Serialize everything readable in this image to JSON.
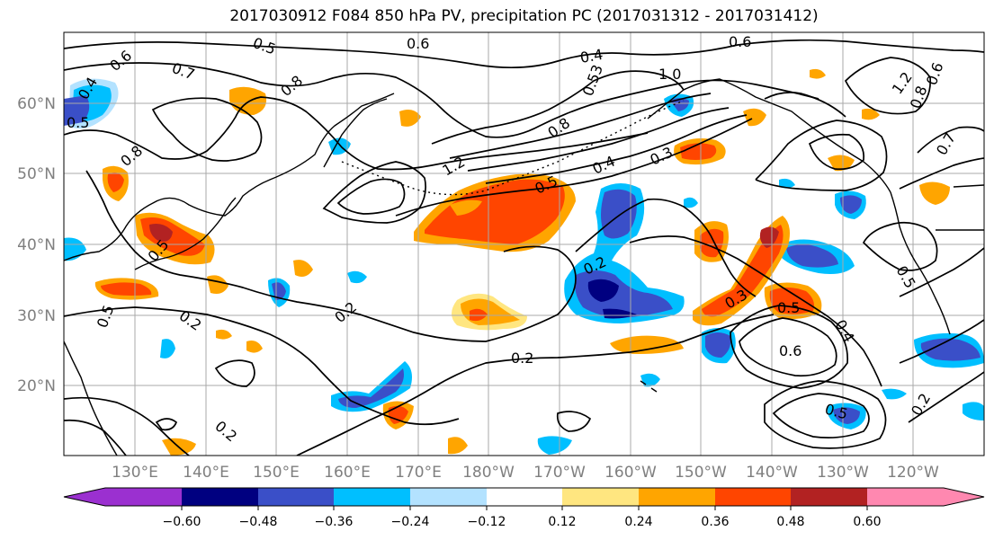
{
  "title": "2017030912 F084 850 hPa PV, precipitation PC (2017031312 - 2017031412)",
  "map": {
    "lat_labels": [
      "60°N",
      "50°N",
      "40°N",
      "30°N",
      "20°N"
    ],
    "lon_labels": [
      "130°E",
      "140°E",
      "150°E",
      "160°E",
      "170°E",
      "180°W",
      "170°W",
      "160°W",
      "150°W",
      "140°W",
      "130°W",
      "120°W"
    ],
    "contour_labels": [
      "0.5",
      "0.6",
      "0.7",
      "0.8",
      "0.4",
      "0.5",
      "0.6",
      "0.4",
      "0.8",
      "0.6",
      "1.0",
      "0.53",
      "0.8",
      "0.4",
      "0.3",
      "0.5",
      "1.2",
      "0.5",
      "0.5",
      "0.2",
      "0.2",
      "0.3",
      "0.5",
      "0.6",
      "0.4",
      "0.2",
      "0.5",
      "0.2",
      "0.2",
      "0.6",
      "0.7",
      "0.8",
      "1.2",
      "0.5",
      "0.2"
    ]
  },
  "colorbar": {
    "ticks": [
      "−0.60",
      "−0.48",
      "−0.36",
      "−0.24",
      "−0.12",
      "0.12",
      "0.24",
      "0.36",
      "0.48",
      "0.60"
    ],
    "colors": [
      "#9b30d0",
      "#000080",
      "#3a4fc8",
      "#00bfff",
      "#b3e2ff",
      "#ffffff",
      "#ffe680",
      "#ffa500",
      "#ff4500",
      "#b22222",
      "#ff88b0"
    ]
  },
  "colors": {
    "neg_deep": "#3a4fc8",
    "neg_navy": "#000080",
    "neg_mid": "#00bfff",
    "neg_light": "#b3e2ff",
    "pos_light": "#ffe680",
    "pos_mid": "#ffa500",
    "pos_strong": "#ff4500",
    "pos_deep": "#b22222",
    "grid": "#a9a9a9",
    "axis_text": "#7f7f7f"
  }
}
